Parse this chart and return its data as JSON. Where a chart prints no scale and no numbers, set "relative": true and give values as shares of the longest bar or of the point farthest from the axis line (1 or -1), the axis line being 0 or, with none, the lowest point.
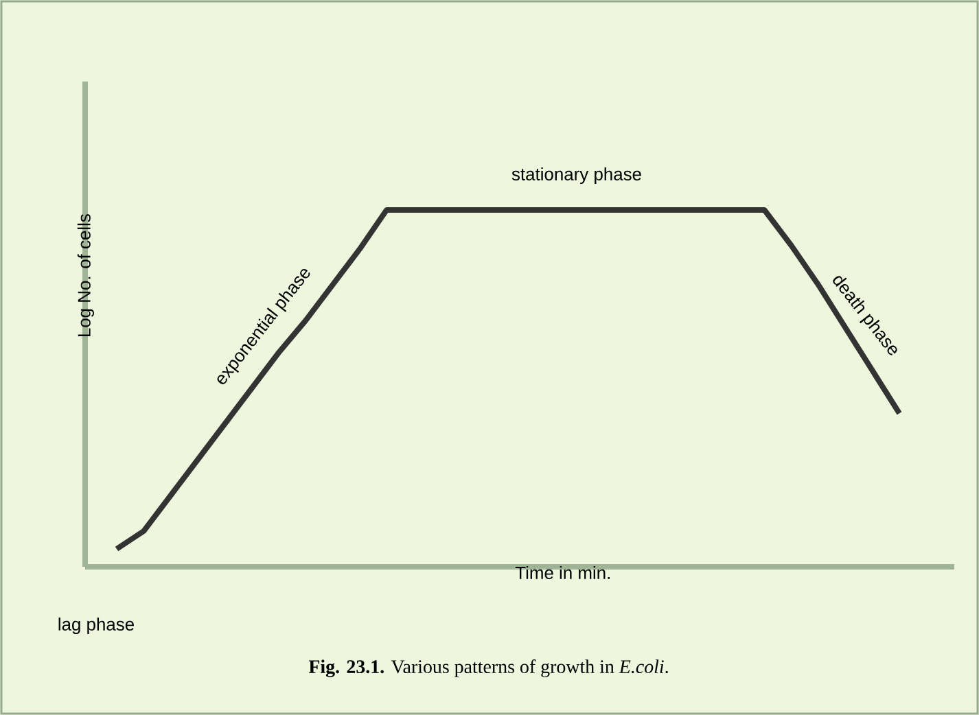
{
  "chart_data": {
    "type": "line",
    "relative": true,
    "color": "#333333",
    "xlabel": "Time in min.",
    "ylabel": "Log No. of cells",
    "categories": [
      null,
      null,
      null,
      null,
      null,
      null,
      null,
      null,
      null,
      null,
      null,
      null,
      null,
      null,
      null,
      null,
      null,
      null,
      null,
      null,
      null,
      null,
      null,
      null,
      null,
      null,
      null,
      null,
      null,
      null
    ],
    "values": [
      0.05,
      0.1,
      0.2,
      0.3,
      0.4,
      0.5,
      0.6,
      0.69,
      0.79,
      0.89,
      1,
      1,
      1,
      1,
      1,
      1,
      1,
      1,
      1,
      1,
      1,
      1,
      1,
      1,
      1,
      0.9,
      0.79,
      0.67,
      0.55,
      0.43
    ],
    "annotations": [
      "stationary phase",
      "exponential phase",
      "death phase",
      "lag phase",
      "**Fig. 23.1.** Various patterns of growth in *E.coli*."
    ]
  }
}
